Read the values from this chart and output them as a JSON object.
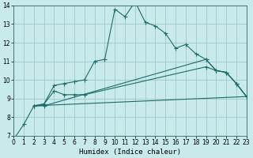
{
  "xlabel": "Humidex (Indice chaleur)",
  "xlim": [
    0,
    23
  ],
  "ylim": [
    7,
    14
  ],
  "yticks": [
    7,
    8,
    9,
    10,
    11,
    12,
    13,
    14
  ],
  "xticks": [
    0,
    1,
    2,
    3,
    4,
    5,
    6,
    7,
    8,
    9,
    10,
    11,
    12,
    13,
    14,
    15,
    16,
    17,
    18,
    19,
    20,
    21,
    22,
    23
  ],
  "bg_color": "#c8eaea",
  "grid_color": "#a0c8c8",
  "line_color": "#1e6b6b",
  "line1_x": [
    0,
    1,
    2,
    3,
    4,
    5,
    6,
    7,
    8,
    9,
    10,
    11,
    12,
    13,
    14,
    15,
    16,
    17,
    18,
    19,
    20,
    21,
    22,
    23
  ],
  "line1_y": [
    6.8,
    7.6,
    8.6,
    8.7,
    9.7,
    9.8,
    9.9,
    10.0,
    11.0,
    11.1,
    13.8,
    13.4,
    14.2,
    13.1,
    12.9,
    12.5,
    11.7,
    11.9,
    11.4,
    11.1,
    10.5,
    10.4,
    9.8,
    9.1
  ],
  "line2_x": [
    2,
    3,
    4,
    5,
    6,
    7,
    19,
    20,
    21,
    22,
    23
  ],
  "line2_y": [
    8.6,
    8.7,
    9.4,
    9.2,
    9.2,
    9.2,
    10.7,
    10.5,
    10.4,
    9.8,
    9.1
  ],
  "line3_x": [
    2,
    3,
    19,
    20,
    21,
    22,
    23
  ],
  "line3_y": [
    8.6,
    8.6,
    11.1,
    10.5,
    10.4,
    9.8,
    9.1
  ],
  "line4_x": [
    2,
    23
  ],
  "line4_y": [
    8.6,
    9.1
  ]
}
